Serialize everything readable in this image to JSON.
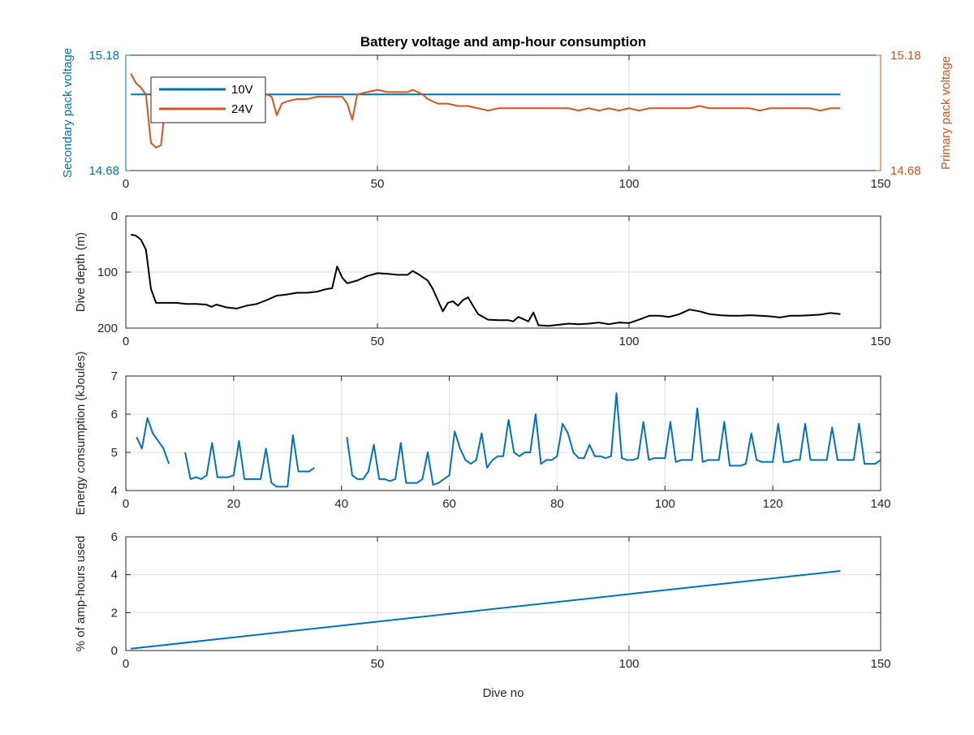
{
  "figure": {
    "title": "Battery voltage and amp-hour consumption",
    "xlabel": "Dive no"
  },
  "colors": {
    "blue": "#0072BD",
    "orange": "#D95319",
    "black": "#000000",
    "axis": "#262626",
    "grid": "#dfdfdf"
  },
  "chart_data": [
    {
      "type": "line",
      "title": "Battery voltage and amp-hour consumption",
      "xlabel": "",
      "ylabel_left": "Secondary pack voltage",
      "ylabel_right": "Primary pack voltage",
      "xlim": [
        0,
        150
      ],
      "ylim": [
        14.68,
        15.18
      ],
      "xticks": [
        "0",
        "50",
        "100",
        "150"
      ],
      "yticks_left": [
        "14.68",
        "15.18"
      ],
      "yticks_right": [
        "14.68",
        "15.18"
      ],
      "grid": true,
      "legend": {
        "placement": "top-left",
        "entries": [
          "10V",
          "24V"
        ]
      },
      "series": [
        {
          "name": "10V",
          "axis": "left",
          "x": [
            1,
            142
          ],
          "y": [
            15.01,
            15.01
          ]
        },
        {
          "name": "24V",
          "axis": "right",
          "x": [
            1,
            2,
            3,
            4,
            5,
            6,
            7,
            8,
            10,
            12,
            14,
            16,
            18,
            20,
            22,
            24,
            26,
            28,
            29,
            30,
            31,
            32,
            34,
            36,
            38,
            40,
            42,
            43,
            44,
            45,
            46,
            48,
            50,
            52,
            54,
            56,
            57,
            58,
            59,
            60,
            62,
            64,
            66,
            68,
            70,
            72,
            74,
            76,
            78,
            80,
            82,
            84,
            86,
            88,
            90,
            92,
            94,
            96,
            98,
            100,
            102,
            104,
            106,
            108,
            110,
            112,
            114,
            116,
            118,
            120,
            122,
            124,
            126,
            128,
            130,
            132,
            134,
            136,
            138,
            140,
            142
          ],
          "y": [
            15.1,
            15.06,
            15.04,
            15.01,
            14.8,
            14.78,
            14.79,
            14.99,
            15.0,
            15.01,
            15.01,
            15.01,
            15.01,
            15.01,
            15.01,
            15.01,
            15.01,
            15.01,
            15.0,
            14.92,
            14.97,
            14.98,
            14.99,
            14.99,
            15.0,
            15.0,
            15.0,
            15.0,
            14.97,
            14.9,
            15.01,
            15.02,
            15.03,
            15.02,
            15.02,
            15.02,
            15.03,
            15.02,
            15.01,
            14.99,
            14.97,
            14.97,
            14.96,
            14.96,
            14.95,
            14.94,
            14.95,
            14.95,
            14.95,
            14.95,
            14.95,
            14.95,
            14.95,
            14.95,
            14.94,
            14.95,
            14.94,
            14.95,
            14.94,
            14.95,
            14.94,
            14.95,
            14.95,
            14.95,
            14.95,
            14.95,
            14.96,
            14.95,
            14.95,
            14.95,
            14.95,
            14.95,
            14.94,
            14.95,
            14.95,
            14.95,
            14.95,
            14.95,
            14.94,
            14.95,
            14.95
          ]
        }
      ]
    },
    {
      "type": "line",
      "xlabel": "",
      "ylabel": "Dive depth (m)",
      "xlim": [
        0,
        150
      ],
      "ylim": [
        0,
        200
      ],
      "y_reversed": true,
      "xticks": [
        "0",
        "50",
        "100",
        "150"
      ],
      "yticks": [
        "0",
        "100",
        "200"
      ],
      "grid": true,
      "series": [
        {
          "x": [
            1,
            2,
            3,
            4,
            5,
            6,
            8,
            10,
            12,
            14,
            16,
            17,
            18,
            20,
            22,
            24,
            26,
            28,
            30,
            32,
            34,
            36,
            38,
            40,
            41,
            42,
            43,
            44,
            46,
            48,
            50,
            52,
            54,
            56,
            57,
            58,
            60,
            61,
            62,
            63,
            64,
            65,
            66,
            67,
            68,
            70,
            72,
            74,
            76,
            77,
            78,
            80,
            81,
            82,
            84,
            86,
            88,
            90,
            92,
            94,
            96,
            98,
            100,
            102,
            104,
            106,
            108,
            110,
            112,
            114,
            116,
            118,
            120,
            122,
            124,
            126,
            128,
            130,
            132,
            134,
            136,
            138,
            140,
            142
          ],
          "y": [
            33,
            35,
            42,
            60,
            130,
            155,
            155,
            155,
            157,
            157,
            158,
            162,
            158,
            163,
            165,
            160,
            157,
            150,
            142,
            140,
            137,
            137,
            135,
            130,
            129,
            90,
            110,
            120,
            115,
            107,
            102,
            103,
            105,
            105,
            98,
            103,
            115,
            130,
            150,
            170,
            155,
            152,
            160,
            150,
            145,
            175,
            185,
            186,
            186,
            188,
            180,
            188,
            172,
            195,
            196,
            194,
            192,
            193,
            192,
            190,
            193,
            190,
            191,
            185,
            178,
            178,
            180,
            175,
            167,
            170,
            175,
            177,
            178,
            178,
            177,
            178,
            179,
            181,
            178,
            178,
            177,
            176,
            173,
            175
          ]
        }
      ]
    },
    {
      "type": "line",
      "xlabel": "",
      "ylabel": "Energy consumption (kJoules)",
      "xlim": [
        0,
        140
      ],
      "ylim": [
        4,
        7
      ],
      "xticks": [
        "0",
        "20",
        "40",
        "60",
        "80",
        "100",
        "120",
        "140"
      ],
      "yticks": [
        "4",
        "5",
        "6",
        "7"
      ],
      "grid": true,
      "series": [
        {
          "segments": [
            {
              "x": [
                2,
                3,
                4,
                5,
                6,
                7,
                8
              ],
              "y": [
                5.4,
                5.1,
                5.9,
                5.5,
                5.3,
                5.1,
                4.7
              ]
            },
            {
              "x": [
                11,
                12,
                13,
                14,
                15,
                16,
                17,
                18,
                19,
                20,
                21,
                22,
                23,
                24,
                25,
                26,
                27,
                28,
                29,
                30,
                31,
                32,
                33,
                34,
                35
              ],
              "y": [
                5.0,
                4.3,
                4.35,
                4.3,
                4.4,
                5.25,
                4.35,
                4.35,
                4.35,
                4.4,
                5.3,
                4.3,
                4.3,
                4.3,
                4.3,
                5.1,
                4.2,
                4.1,
                4.1,
                4.1,
                5.45,
                4.5,
                4.5,
                4.5,
                4.6
              ]
            },
            {
              "x": [
                41,
                42,
                43,
                44,
                45,
                46,
                47,
                48,
                49,
                50,
                51,
                52,
                53,
                54,
                55,
                56,
                57,
                58,
                59,
                60,
                61,
                62,
                63,
                64,
                65,
                66,
                67,
                68,
                69,
                70,
                71,
                72,
                73,
                74,
                75,
                76,
                77,
                78,
                79,
                80,
                81,
                82,
                83,
                84,
                85,
                86,
                87,
                88,
                89,
                90,
                91,
                92,
                93,
                94,
                95,
                96,
                97,
                98,
                99,
                100,
                101,
                102,
                103,
                104,
                105,
                106,
                107,
                108,
                109,
                110,
                111,
                112,
                113,
                114,
                115,
                116,
                117,
                118,
                119,
                120,
                121,
                122,
                123,
                124,
                125,
                126,
                127,
                128,
                129,
                130,
                131,
                132,
                133,
                134,
                135,
                136,
                137,
                138,
                139,
                140
              ],
              "y": [
                5.4,
                4.4,
                4.3,
                4.3,
                4.5,
                5.2,
                4.3,
                4.3,
                4.25,
                4.3,
                5.25,
                4.2,
                4.2,
                4.2,
                4.3,
                5.0,
                4.15,
                4.2,
                4.3,
                4.4,
                5.55,
                5.1,
                4.8,
                4.7,
                4.8,
                5.5,
                4.6,
                4.8,
                4.9,
                4.9,
                5.85,
                5.0,
                4.9,
                5.0,
                5.0,
                6.0,
                4.7,
                4.8,
                4.8,
                4.9,
                5.75,
                5.5,
                5.0,
                4.85,
                4.85,
                5.2,
                4.9,
                4.9,
                4.85,
                4.9,
                6.55,
                4.85,
                4.8,
                4.8,
                4.85,
                5.8,
                4.8,
                4.85,
                4.85,
                4.85,
                5.8,
                4.75,
                4.8,
                4.8,
                4.8,
                6.15,
                4.75,
                4.8,
                4.8,
                4.8,
                5.8,
                4.65,
                4.65,
                4.65,
                4.7,
                5.5,
                4.8,
                4.75,
                4.75,
                4.75,
                5.75,
                4.75,
                4.75,
                4.8,
                4.8,
                5.75,
                4.8,
                4.8,
                4.8,
                4.8,
                5.65,
                4.8,
                4.8,
                4.8,
                4.8,
                5.75,
                4.7,
                4.7,
                4.7,
                4.8
              ]
            }
          ]
        }
      ]
    },
    {
      "type": "line",
      "xlabel": "Dive no",
      "ylabel": "% of amp-hours used",
      "xlim": [
        0,
        150
      ],
      "ylim": [
        0,
        6
      ],
      "xticks": [
        "0",
        "50",
        "100",
        "150"
      ],
      "yticks": [
        "0",
        "2",
        "4",
        "6"
      ],
      "grid": true,
      "series": [
        {
          "x": [
            1,
            142
          ],
          "y": [
            0.1,
            4.2
          ]
        }
      ]
    }
  ]
}
